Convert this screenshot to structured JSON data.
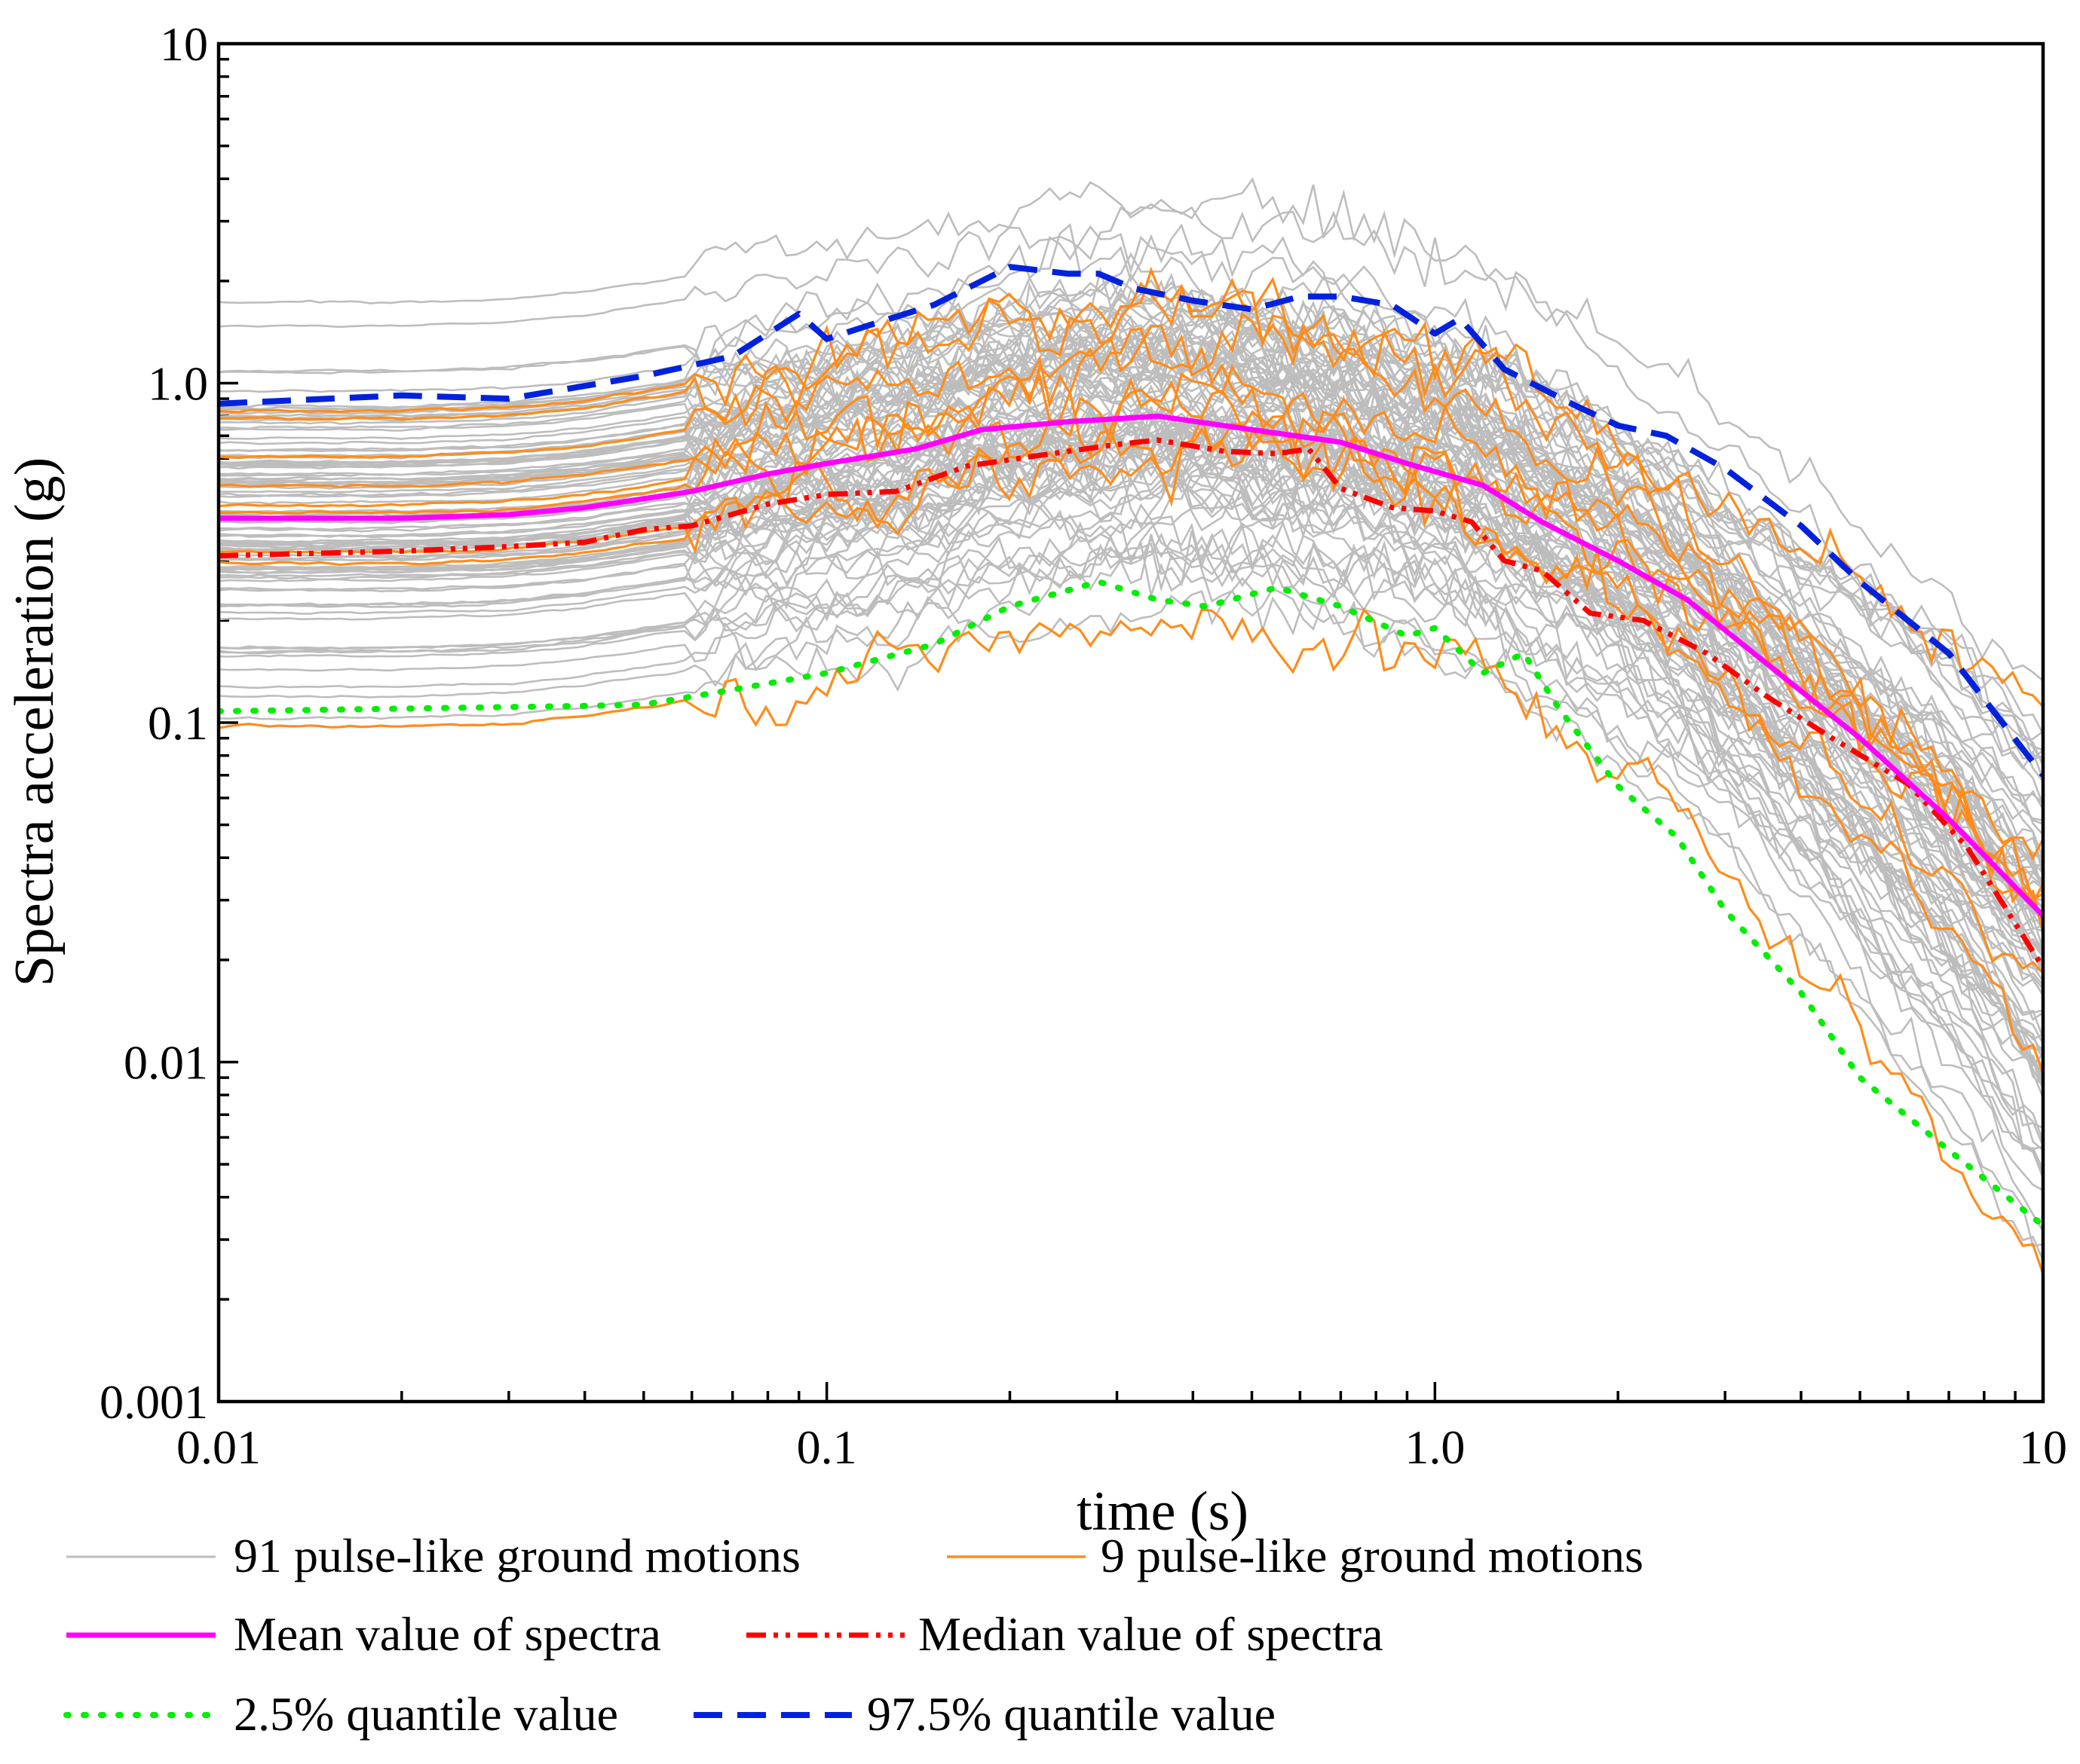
{
  "chart_data": {
    "type": "line",
    "xscale": "log",
    "yscale": "log",
    "xlabel": "time (s)",
    "ylabel": "Spectra acceleration (g)",
    "xlim": [
      0.01,
      10
    ],
    "ylim": [
      0.001,
      10
    ],
    "xticks": [
      {
        "value": 0.01,
        "label": "0.01"
      },
      {
        "value": 0.1,
        "label": "0.1"
      },
      {
        "value": 1,
        "label": "1.0"
      },
      {
        "value": 10,
        "label": "10"
      }
    ],
    "yticks": [
      {
        "value": 0.001,
        "label": "0.001"
      },
      {
        "value": 0.01,
        "label": "0.01"
      },
      {
        "value": 0.1,
        "label": "0.1"
      },
      {
        "value": 1,
        "label": "1.0"
      },
      {
        "value": 10,
        "label": "10"
      }
    ],
    "colors": {
      "gray": "#bdbdbd",
      "orange": "#ff8c1a",
      "mean": "#ff00ff",
      "median": "#ff0000",
      "q025": "#00ee00",
      "q975": "#0022dd"
    },
    "legend": {
      "placement": "bottom",
      "entries": [
        {
          "key": "gray",
          "label": "91 pulse-like ground motions",
          "style": "thin"
        },
        {
          "key": "orange",
          "label": "9 pulse-like ground motions",
          "style": "thin"
        },
        {
          "key": "mean",
          "label": "Mean value of spectra",
          "style": "solid"
        },
        {
          "key": "median",
          "label": "Median value of  spectra",
          "style": "dashdot"
        },
        {
          "key": "q025",
          "label": "2.5% quantile value",
          "style": "dotted"
        },
        {
          "key": "q975",
          "label": "97.5% quantile value",
          "style": "dashed"
        }
      ]
    },
    "envelope": {
      "note": "91 gray record spectra lie mostly between the 2.5% and 97.5% quantile curves",
      "gray_count": 91,
      "orange_count": 9
    },
    "series": [
      {
        "name": "Mean value of spectra",
        "key": "mean",
        "x": [
          0.01,
          0.02,
          0.03,
          0.04,
          0.06,
          0.08,
          0.1,
          0.14,
          0.18,
          0.25,
          0.35,
          0.5,
          0.7,
          0.9,
          1.2,
          1.5,
          2.0,
          2.6,
          3.5,
          5.0,
          7.0,
          10.0
        ],
        "y": [
          0.4,
          0.4,
          0.41,
          0.43,
          0.48,
          0.54,
          0.58,
          0.64,
          0.73,
          0.77,
          0.8,
          0.73,
          0.67,
          0.58,
          0.5,
          0.39,
          0.3,
          0.23,
          0.15,
          0.09,
          0.052,
          0.027
        ]
      },
      {
        "name": "Median value of  spectra",
        "key": "median",
        "x": [
          0.01,
          0.02,
          0.03,
          0.04,
          0.05,
          0.06,
          0.08,
          0.1,
          0.13,
          0.17,
          0.22,
          0.3,
          0.35,
          0.45,
          0.55,
          0.62,
          0.7,
          0.85,
          1.0,
          1.15,
          1.3,
          1.5,
          1.8,
          2.2,
          2.8,
          3.5,
          4.5,
          6.0,
          7.5,
          10.0
        ],
        "y": [
          0.31,
          0.32,
          0.33,
          0.34,
          0.37,
          0.38,
          0.44,
          0.47,
          0.48,
          0.57,
          0.61,
          0.66,
          0.68,
          0.63,
          0.62,
          0.64,
          0.49,
          0.43,
          0.42,
          0.39,
          0.3,
          0.28,
          0.21,
          0.2,
          0.16,
          0.12,
          0.09,
          0.066,
          0.043,
          0.019
        ]
      },
      {
        "name": "2.5% quantile value",
        "key": "q025",
        "x": [
          0.01,
          0.02,
          0.04,
          0.05,
          0.07,
          0.1,
          0.15,
          0.2,
          0.28,
          0.35,
          0.42,
          0.55,
          0.7,
          0.9,
          1.0,
          1.2,
          1.4,
          1.6,
          2.0,
          2.5,
          3.0,
          4.0,
          5.0,
          7.0,
          10.0
        ],
        "y": [
          0.108,
          0.11,
          0.112,
          0.113,
          0.125,
          0.14,
          0.17,
          0.22,
          0.26,
          0.23,
          0.22,
          0.25,
          0.22,
          0.18,
          0.19,
          0.14,
          0.16,
          0.11,
          0.065,
          0.046,
          0.028,
          0.016,
          0.009,
          0.0055,
          0.0033
        ]
      },
      {
        "name": "97.5% quantile value",
        "key": "q975",
        "x": [
          0.01,
          0.02,
          0.03,
          0.05,
          0.07,
          0.09,
          0.1,
          0.12,
          0.15,
          0.2,
          0.25,
          0.28,
          0.32,
          0.4,
          0.5,
          0.6,
          0.7,
          0.85,
          1.0,
          1.1,
          1.3,
          1.7,
          2.0,
          2.4,
          3.0,
          4.0,
          5.0,
          7.0,
          10.0
        ],
        "y": [
          0.87,
          0.92,
          0.9,
          1.05,
          1.2,
          1.6,
          1.35,
          1.5,
          1.7,
          2.2,
          2.1,
          2.1,
          1.9,
          1.75,
          1.65,
          1.8,
          1.8,
          1.7,
          1.4,
          1.55,
          1.1,
          0.86,
          0.75,
          0.7,
          0.56,
          0.38,
          0.26,
          0.16,
          0.07
        ]
      }
    ]
  }
}
